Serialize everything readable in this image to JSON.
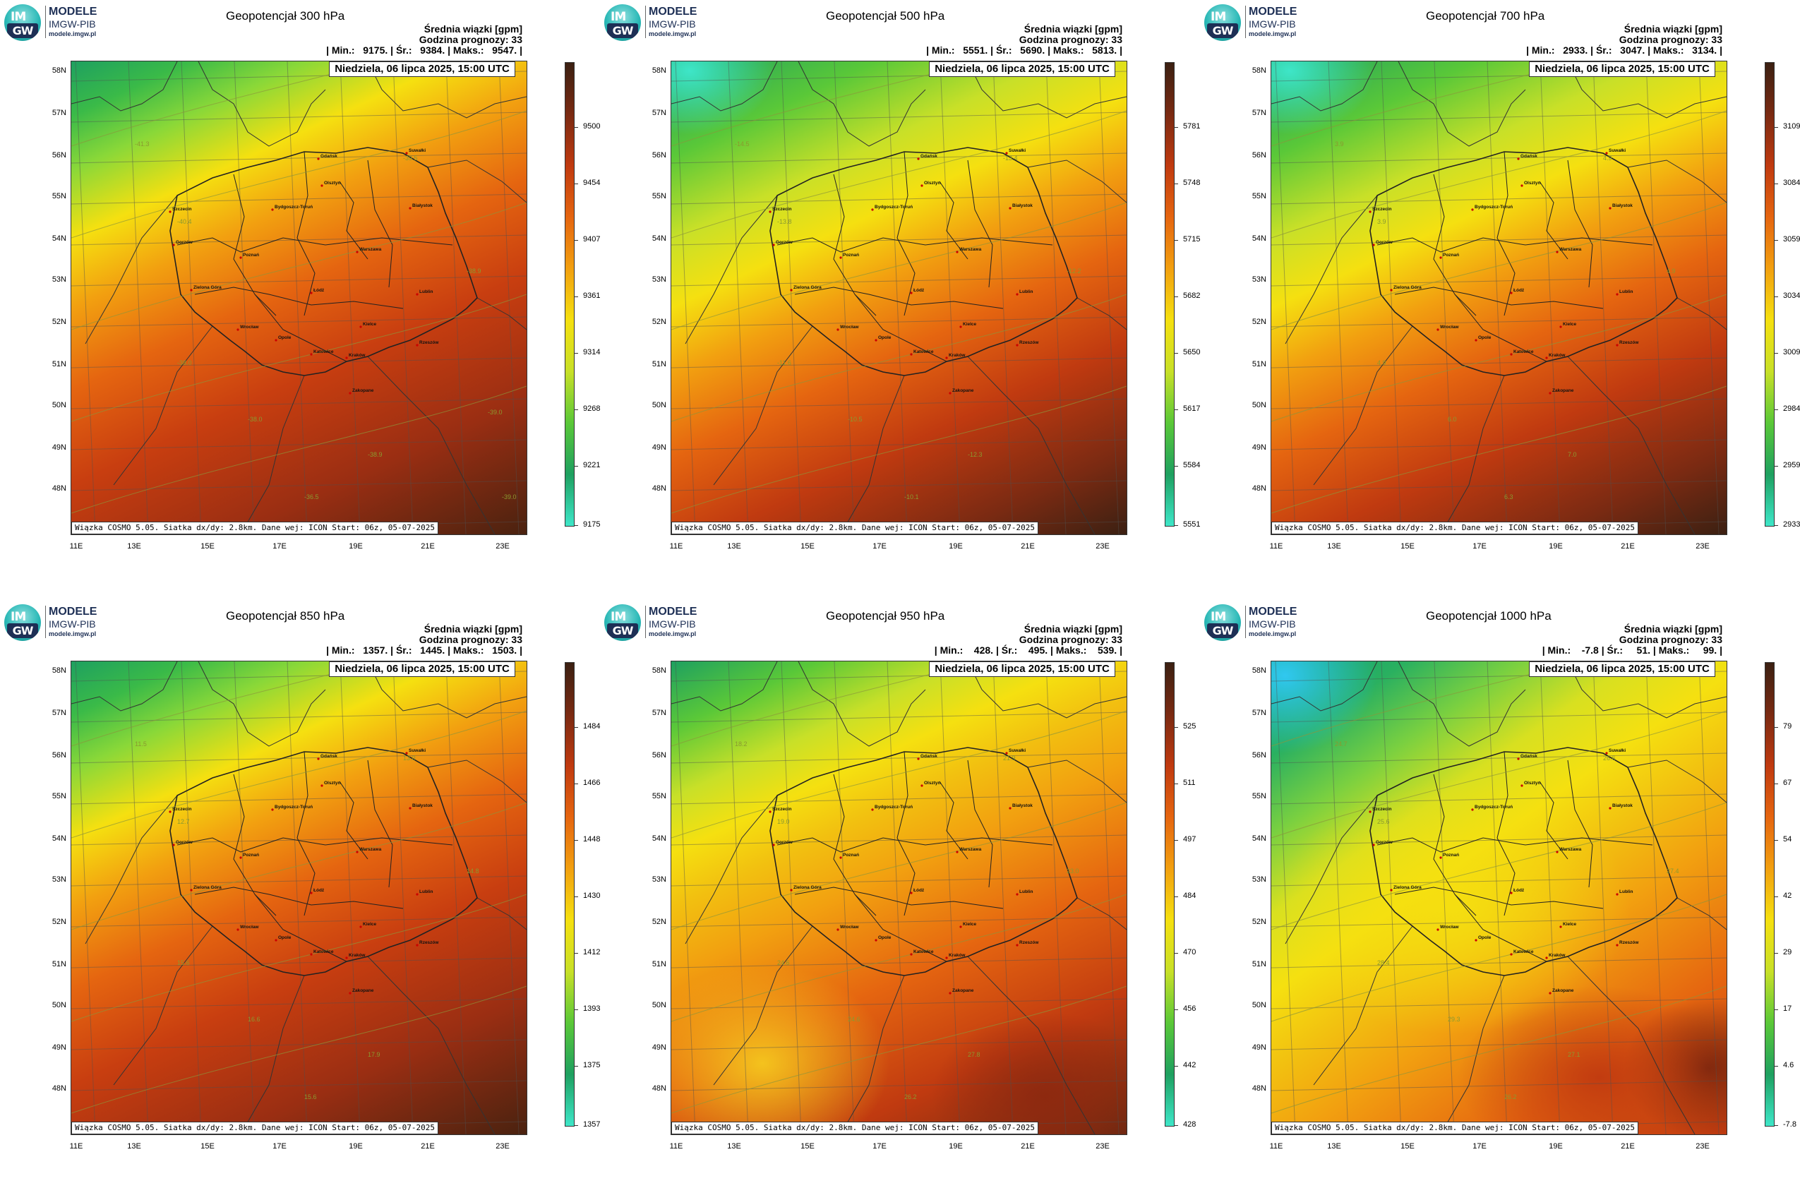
{
  "logo": {
    "line1": "MODELE",
    "line2": "IMGW-PIB",
    "line3": "modele.imgw.pl",
    "mark_top": "IM",
    "mark_bottom": "GW"
  },
  "common": {
    "field_label": "Średnia wiązki [gpm]",
    "forecast_hour": "Godzina prognozy: 33",
    "date": "Niedziela, 06 lipca 2025, 15:00 UTC",
    "footer": "Wiązka COSMO 5.05. Siatka dx/dy: 2.8km. Dane wej: ICON Start: 06z, 05-07-2025",
    "lat_labels": [
      "58N",
      "57N",
      "56N",
      "55N",
      "54N",
      "53N",
      "52N",
      "51N",
      "50N",
      "49N",
      "48N"
    ],
    "lon_labels": [
      "11E",
      "13E",
      "15E",
      "17E",
      "19E",
      "21E",
      "23E"
    ]
  },
  "panels": [
    {
      "title": "Geopotencjał 300 hPa",
      "stats": "| Min.:   9175. | Śr.:   9384. | Maks.:   9547. |",
      "colorbar": [
        "9500",
        "9454",
        "9407",
        "9361",
        "9314",
        "9268",
        "9221",
        "9175"
      ],
      "scheme": "mid",
      "contour_labels": [
        "-41.3",
        "-40.4",
        "-39.5",
        "-38.9",
        "-38.0",
        "-38.0",
        "-36.5",
        "-38.9",
        "-39.0",
        "-39.0"
      ]
    },
    {
      "title": "Geopotencjał 500 hPa",
      "stats": "| Min.:   5551. | Śr.:   5690. | Maks.:   5813. |",
      "colorbar": [
        "5781",
        "5748",
        "5715",
        "5682",
        "5650",
        "5617",
        "5584",
        "5551"
      ],
      "scheme": "upper",
      "contour_labels": [
        "-14.5",
        "-13.8",
        "-13.4",
        "-12.2",
        "-11.6",
        "-10.5",
        "-10.1",
        "-12.3"
      ]
    },
    {
      "title": "Geopotencjał 700 hPa",
      "stats": "| Min.:   2933. | Śr.:   3047. | Maks.:   3134. |",
      "colorbar": [
        "3109",
        "3084",
        "3059",
        "3034",
        "3009",
        "2984",
        "2959",
        "2933"
      ],
      "scheme": "upper",
      "contour_labels": [
        "3.9",
        "3.9",
        "4.9",
        "4.9",
        "4.9",
        "6.0",
        "6.3",
        "7.0"
      ]
    },
    {
      "title": "Geopotencjał 850 hPa",
      "stats": "| Min.:   1357. | Śr.:   1445. | Maks.:   1503. |",
      "colorbar": [
        "1484",
        "1466",
        "1448",
        "1430",
        "1412",
        "1393",
        "1375",
        "1357"
      ],
      "scheme": "mid",
      "contour_labels": [
        "11.5",
        "12.7",
        "13.0",
        "14.8",
        "15.6",
        "16.6",
        "15.6",
        "17.9"
      ]
    },
    {
      "title": "Geopotencjał 950 hPa",
      "stats": "| Min.:    428. | Śr.:    495. | Maks.:    539. |",
      "colorbar": [
        "525",
        "511",
        "497",
        "484",
        "470",
        "456",
        "442",
        "428"
      ],
      "scheme": "low",
      "contour_labels": [
        "18.2",
        "19.0",
        "21.9",
        "23.0",
        "24.6",
        "24.6",
        "26.2",
        "27.8"
      ]
    },
    {
      "title": "Geopotencjał 1000 hPa",
      "stats": "| Min.:    -7.8 | Śr.:     51. | Maks.:     99. |",
      "colorbar": [
        "79",
        "67",
        "54",
        "42",
        "29",
        "17",
        "4.6",
        "-7.8"
      ],
      "scheme": "surface",
      "contour_labels": [
        "24.7",
        "25.6",
        "26.6",
        "27.4",
        "28.4",
        "29.3",
        "26.2",
        "27.1"
      ]
    }
  ],
  "colors": {
    "colorbar_gradient": [
      "#3b2012",
      "#7a2a12",
      "#c03a10",
      "#e56510",
      "#f2a010",
      "#f5e010",
      "#c8e028",
      "#5ac838",
      "#1ea060",
      "#3ee6c8"
    ]
  }
}
